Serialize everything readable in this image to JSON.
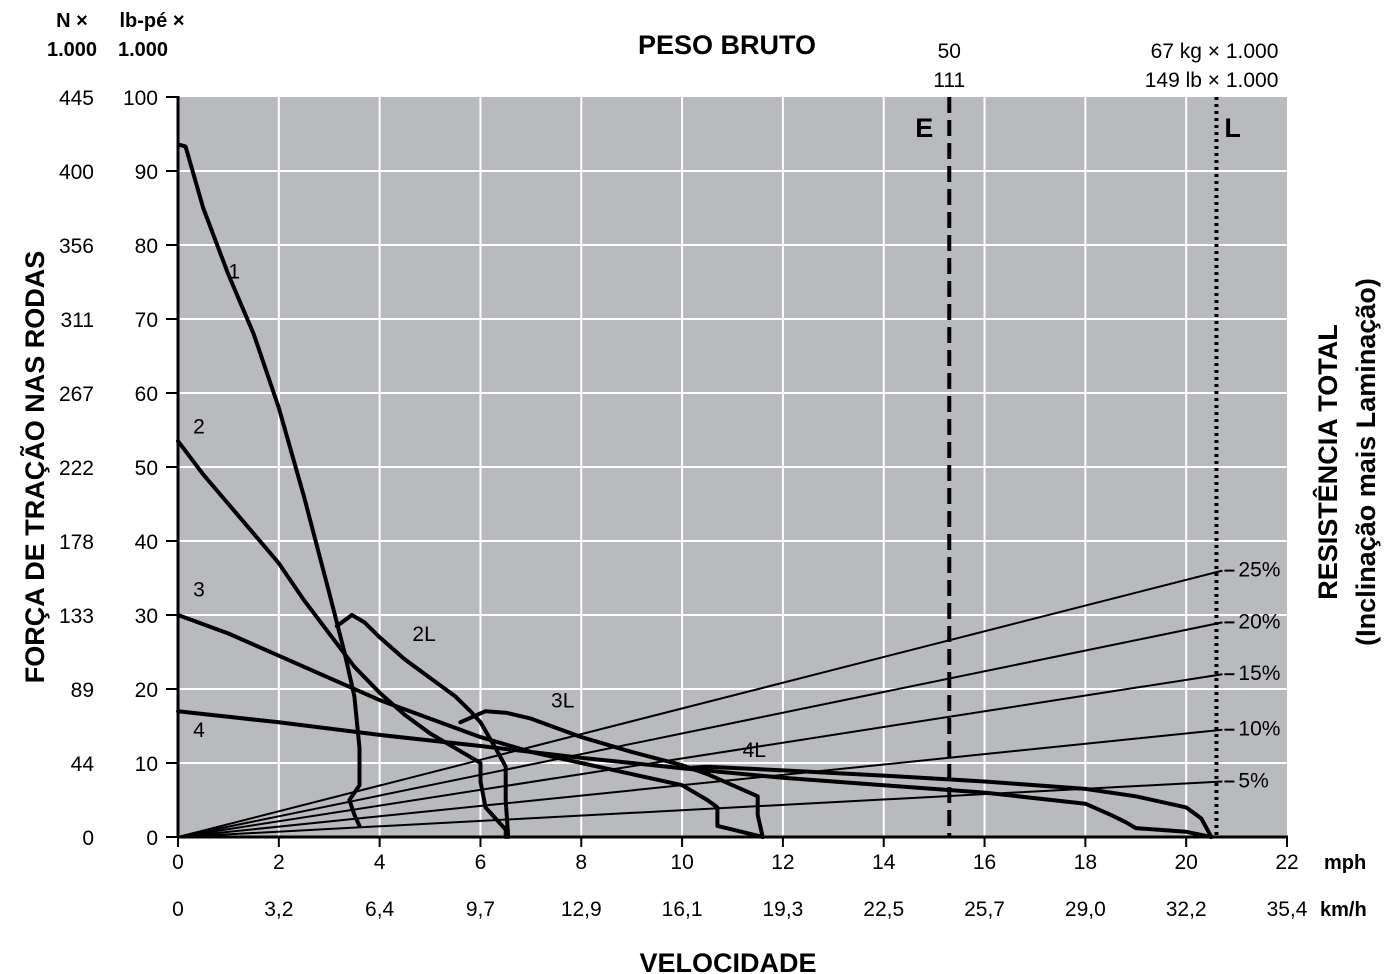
{
  "chart_data": {
    "type": "line",
    "title": "PESO BRUTO",
    "xlabel": "VELOCIDADE",
    "ylabel": "FORÇA DE TRAÇÃO NAS RODAS",
    "y2label_line1": "RESISTÊNCIA TOTAL",
    "y2label_line2": "(Inclinação mais Laminação)",
    "unit_N_line1": "N ×",
    "unit_N_line2": "1.000",
    "unit_lbft_line1": "lb-pé ×",
    "unit_lbft_line2": "1.000",
    "x_unit": "mph",
    "x2_unit": "km/h",
    "xlim": [
      0,
      22
    ],
    "ylim": [
      0,
      100
    ],
    "x_ticks": [
      0,
      2,
      4,
      6,
      8,
      10,
      12,
      14,
      16,
      18,
      20,
      22
    ],
    "x_ticks_kmh": [
      "0",
      "3,2",
      "6,4",
      "9,7",
      "12,9",
      "16,1",
      "19,3",
      "22,5",
      "25,7",
      "29,0",
      "32,2",
      "35,4"
    ],
    "y_ticks": [
      0,
      10,
      20,
      30,
      40,
      50,
      60,
      70,
      80,
      90,
      100
    ],
    "y_ticks_N": [
      "0",
      "44",
      "89",
      "133",
      "178",
      "222",
      "267",
      "311",
      "356",
      "400",
      "445"
    ],
    "grid": true,
    "weight_lines": [
      {
        "label": "E",
        "x": 15.3,
        "style": "dashed",
        "top_label_1": "50",
        "top_label_2": "111"
      },
      {
        "label": "L",
        "x": 20.6,
        "style": "dotted",
        "top_label_1": "67 kg × 1.000",
        "top_label_2": "149 lb × 1.000"
      }
    ],
    "series": [
      {
        "name": "1",
        "label_at": [
          1.0,
          75.5
        ],
        "points": [
          [
            0.05,
            93.5
          ],
          [
            0.15,
            93.3
          ],
          [
            0.5,
            85
          ],
          [
            1,
            76
          ],
          [
            1.5,
            68
          ],
          [
            2,
            58
          ],
          [
            2.5,
            46
          ],
          [
            3,
            33
          ],
          [
            3.3,
            25
          ],
          [
            3.5,
            19
          ],
          [
            3.6,
            12
          ],
          [
            3.6,
            7
          ],
          [
            3.4,
            5
          ],
          [
            3.5,
            3
          ],
          [
            3.6,
            1.5
          ]
        ]
      },
      {
        "name": "2",
        "label_at": [
          0.3,
          54.5
        ],
        "points": [
          [
            0,
            53.5
          ],
          [
            0.5,
            49
          ],
          [
            1,
            45
          ],
          [
            1.5,
            41
          ],
          [
            2,
            37
          ],
          [
            2.5,
            32
          ],
          [
            3,
            27.5
          ],
          [
            3.5,
            23
          ],
          [
            4,
            19.5
          ],
          [
            4.5,
            16.5
          ],
          [
            5,
            14
          ],
          [
            5.5,
            12
          ],
          [
            6,
            10
          ],
          [
            6,
            7.5
          ],
          [
            6.1,
            4
          ],
          [
            6.3,
            2.5
          ],
          [
            6.5,
            1
          ],
          [
            6.5,
            0
          ]
        ]
      },
      {
        "name": "2L",
        "label_at": [
          4.65,
          26.5
        ],
        "points": [
          [
            3.15,
            28.5
          ],
          [
            3.45,
            30
          ],
          [
            3.7,
            29
          ],
          [
            4,
            27
          ],
          [
            4.5,
            24
          ],
          [
            5,
            21.5
          ],
          [
            5.5,
            19
          ],
          [
            5.8,
            17
          ],
          [
            6,
            15.5
          ],
          [
            6.3,
            12
          ],
          [
            6.5,
            9.5
          ],
          [
            6.5,
            5
          ],
          [
            6.55,
            0
          ]
        ]
      },
      {
        "name": "3",
        "label_at": [
          0.3,
          32.5
        ],
        "points": [
          [
            0,
            30
          ],
          [
            1,
            27.5
          ],
          [
            2,
            24.5
          ],
          [
            3,
            21.5
          ],
          [
            4,
            18.5
          ],
          [
            5,
            16
          ],
          [
            6,
            13.5
          ],
          [
            7,
            11.5
          ],
          [
            8,
            10
          ],
          [
            9,
            8.5
          ],
          [
            10,
            7
          ],
          [
            10.5,
            5
          ],
          [
            10.7,
            4
          ],
          [
            10.7,
            1.5
          ],
          [
            11,
            1
          ],
          [
            11.6,
            0
          ]
        ]
      },
      {
        "name": "3L",
        "label_at": [
          7.4,
          17.5
        ],
        "points": [
          [
            5.6,
            15.5
          ],
          [
            6.1,
            17
          ],
          [
            6.5,
            16.8
          ],
          [
            7,
            16
          ],
          [
            8,
            13.5
          ],
          [
            9,
            11.5
          ],
          [
            10,
            9.7
          ],
          [
            10.5,
            8.5
          ],
          [
            11,
            7
          ],
          [
            11.5,
            5.5
          ],
          [
            11.5,
            3
          ],
          [
            11.6,
            0
          ]
        ]
      },
      {
        "name": "4",
        "label_at": [
          0.3,
          13.5
        ],
        "points": [
          [
            0,
            17
          ],
          [
            2,
            15.5
          ],
          [
            4,
            13.8
          ],
          [
            6,
            12.3
          ],
          [
            8,
            10.7
          ],
          [
            10,
            9.3
          ],
          [
            12,
            8
          ],
          [
            14,
            7
          ],
          [
            16,
            6
          ],
          [
            18,
            4.5
          ],
          [
            18.5,
            3
          ],
          [
            18.8,
            2
          ],
          [
            19,
            1.2
          ],
          [
            20,
            0.7
          ],
          [
            20.5,
            0
          ]
        ]
      },
      {
        "name": "4L",
        "label_at": [
          11.2,
          10.8
        ],
        "points": [
          [
            10,
            9.3
          ],
          [
            10.5,
            9.5
          ],
          [
            12,
            9
          ],
          [
            14,
            8.3
          ],
          [
            16,
            7.5
          ],
          [
            18,
            6.5
          ],
          [
            19,
            5.5
          ],
          [
            20,
            4
          ],
          [
            20.3,
            2.5
          ],
          [
            20.5,
            0
          ]
        ]
      }
    ],
    "rimpull_lines": [
      {
        "name": "25%",
        "x_end": 20.6,
        "y_end": 36
      },
      {
        "name": "20%",
        "x_end": 20.6,
        "y_end": 29
      },
      {
        "name": "15%",
        "x_end": 20.6,
        "y_end": 22
      },
      {
        "name": "10%",
        "x_end": 20.6,
        "y_end": 14.5
      },
      {
        "name": "5%",
        "x_end": 20.6,
        "y_end": 7.5
      }
    ]
  }
}
